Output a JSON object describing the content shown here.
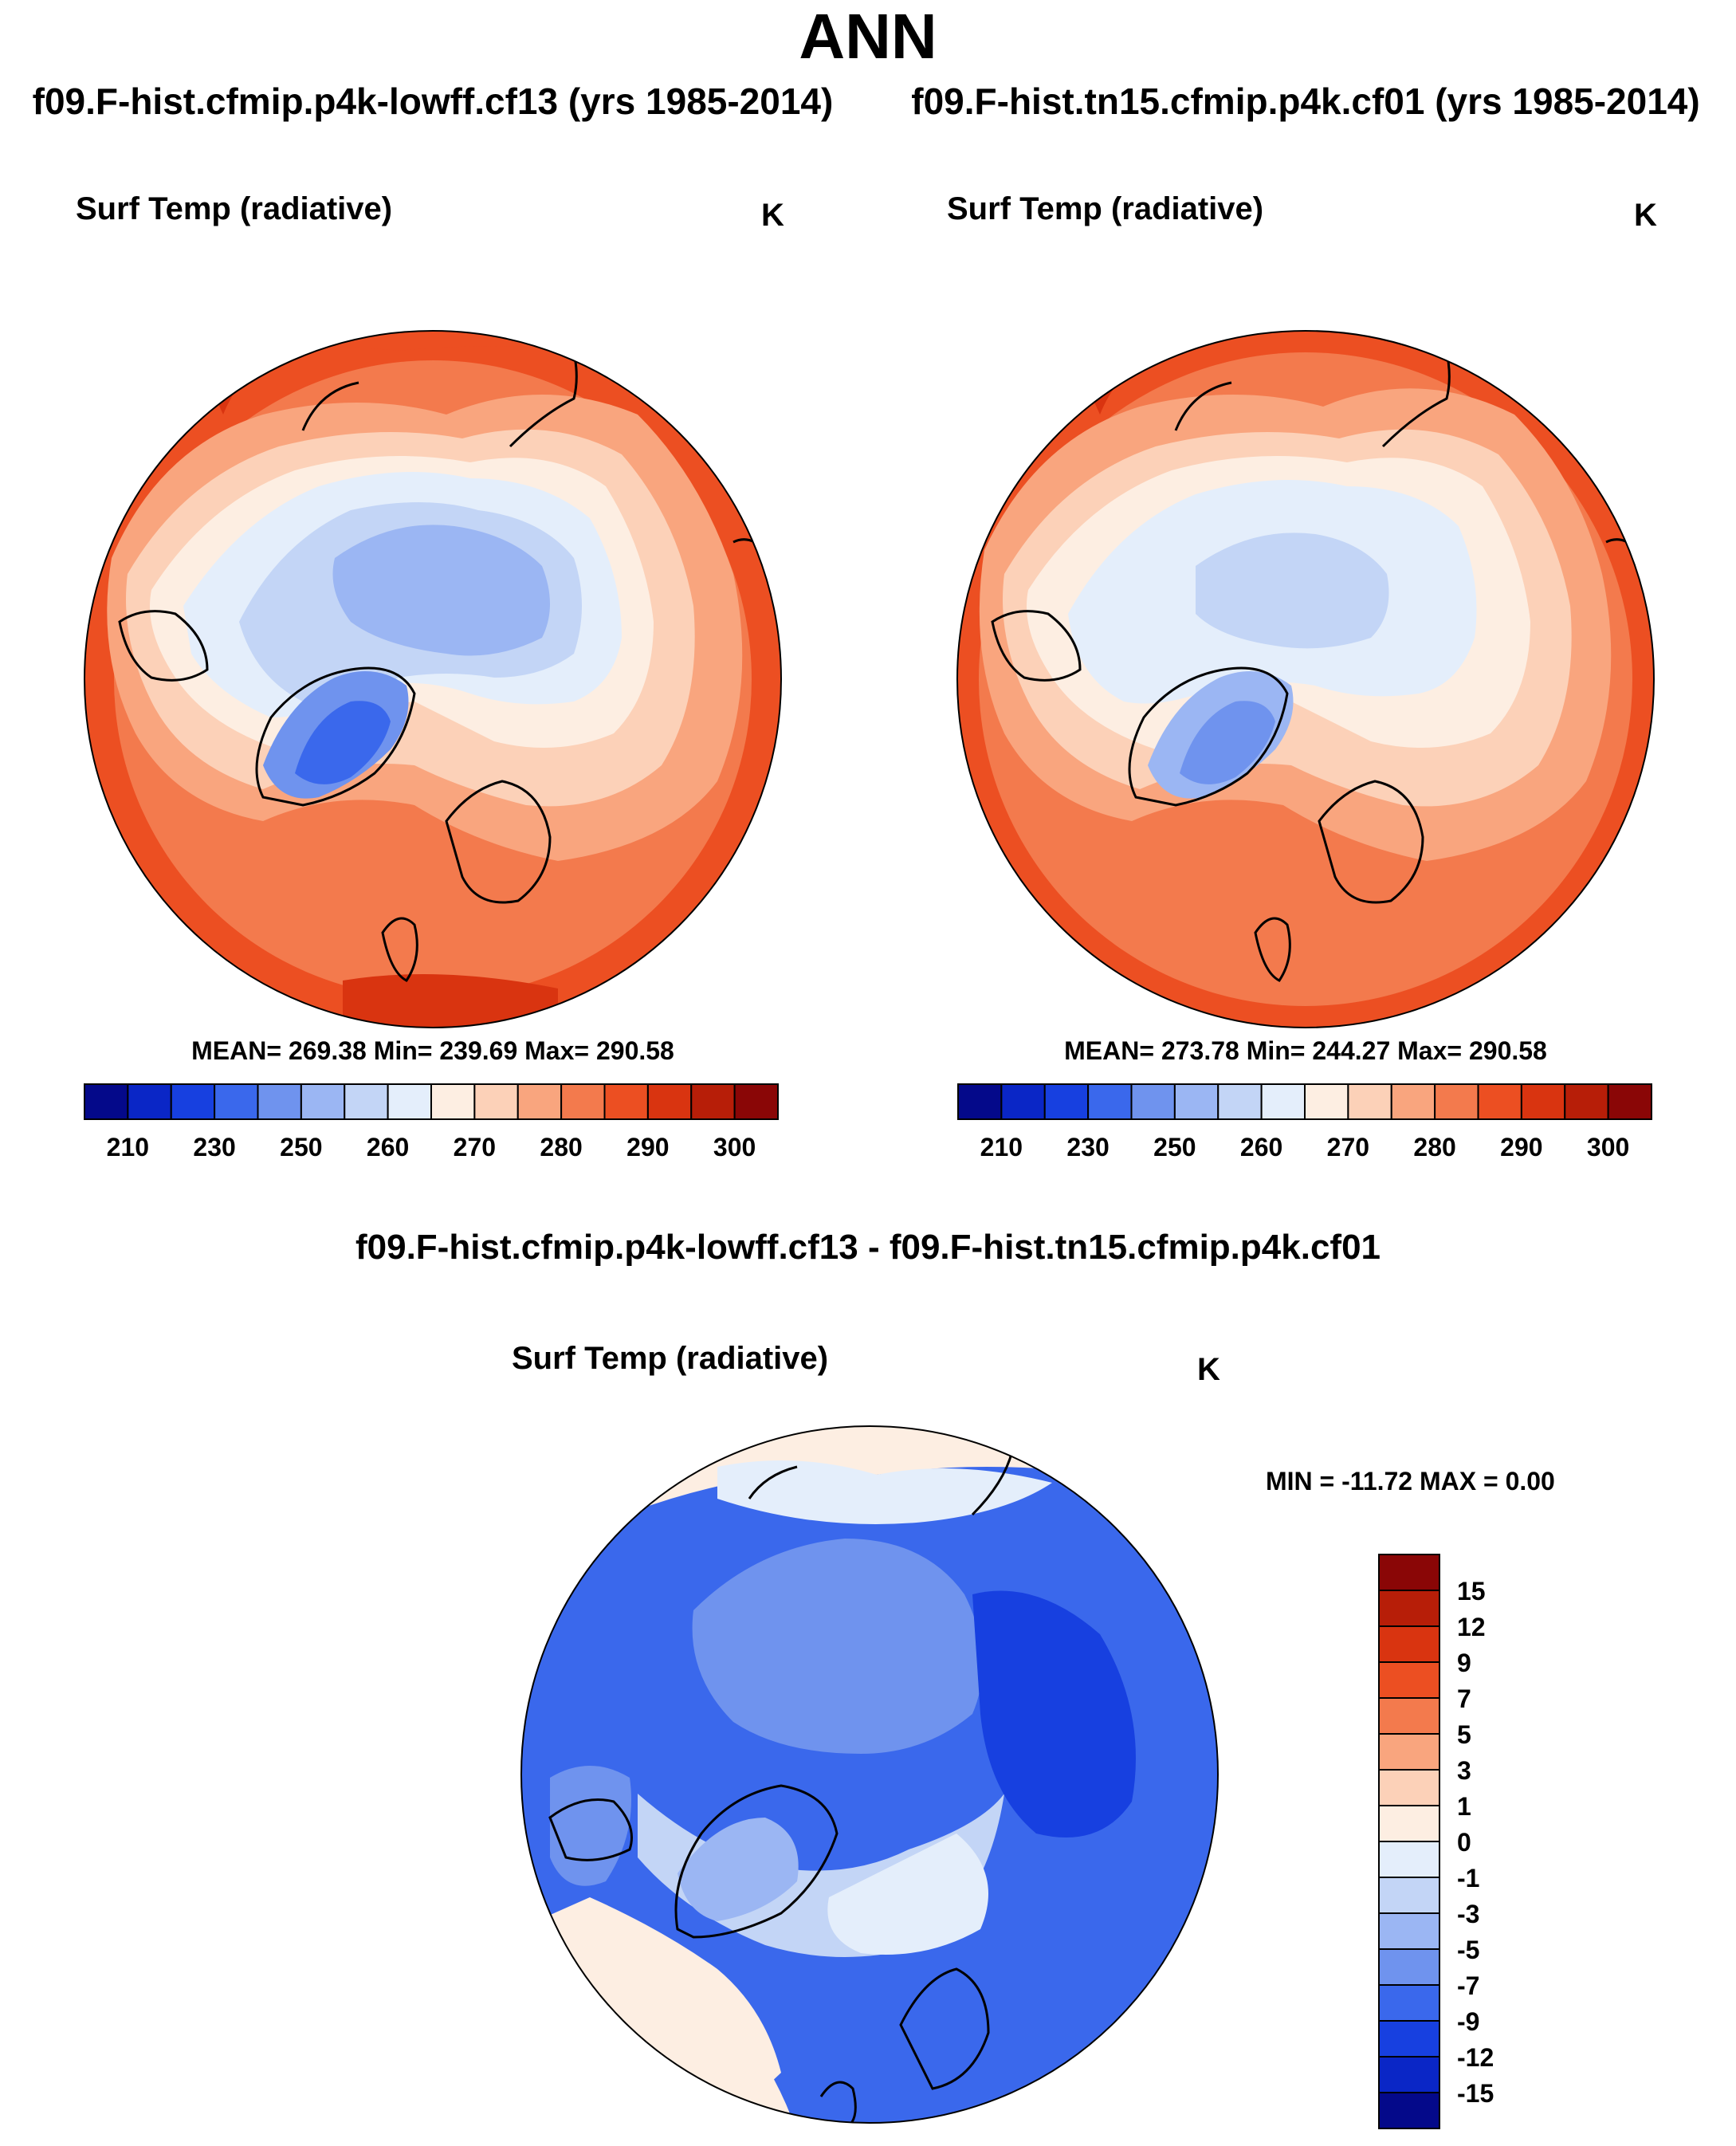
{
  "main_title": "ANN",
  "diff_title": "f09.F-hist.cfmip.p4k-lowff.cf13 - f09.F-hist.tn15.cfmip.p4k.cf01",
  "panels": {
    "a": {
      "run_title": "f09.F-hist.cfmip.p4k-lowff.cf13 (yrs 1985-2014)",
      "var_title": "Surf Temp (radiative)",
      "units": "K",
      "stats": "MEAN= 269.38  Min= 239.69  Max= 290.58"
    },
    "b": {
      "run_title": "f09.F-hist.tn15.cfmip.p4k.cf01 (yrs 1985-2014)",
      "var_title": "Surf Temp (radiative)",
      "units": "K",
      "stats": "MEAN= 273.78  Min= 244.27  Max= 290.58"
    },
    "diff": {
      "var_title": "Surf Temp (radiative)",
      "units": "K",
      "stats": "MIN = -11.72 MAX =    0.00"
    }
  },
  "chart_data": [
    {
      "type": "heatmap",
      "projection": "north-polar-stereographic",
      "title": "Surf Temp (radiative)",
      "units": "K",
      "run": "f09.F-hist.cfmip.p4k-lowff.cf13 (yrs 1985-2014)",
      "mean": 269.38,
      "min": 239.69,
      "max": 290.58,
      "colorbar_ticks": [
        210,
        230,
        250,
        260,
        270,
        280,
        290,
        300
      ],
      "colorbar_colors": [
        "#04098a",
        "#0a26c6",
        "#1740e0",
        "#3a68ec",
        "#6f93ee",
        "#9bb6f3",
        "#c3d5f6",
        "#e4eefb",
        "#fdeee2",
        "#fcd1b8",
        "#f9a57e",
        "#f37a4d",
        "#ec4f22",
        "#d93410",
        "#b71e08",
        "#8a0606"
      ]
    },
    {
      "type": "heatmap",
      "projection": "north-polar-stereographic",
      "title": "Surf Temp (radiative)",
      "units": "K",
      "run": "f09.F-hist.tn15.cfmip.p4k.cf01 (yrs 1985-2014)",
      "mean": 273.78,
      "min": 244.27,
      "max": 290.58,
      "colorbar_ticks": [
        210,
        230,
        250,
        260,
        270,
        280,
        290,
        300
      ],
      "colorbar_colors": [
        "#04098a",
        "#0a26c6",
        "#1740e0",
        "#3a68ec",
        "#6f93ee",
        "#9bb6f3",
        "#c3d5f6",
        "#e4eefb",
        "#fdeee2",
        "#fcd1b8",
        "#f9a57e",
        "#f37a4d",
        "#ec4f22",
        "#d93410",
        "#b71e08",
        "#8a0606"
      ]
    },
    {
      "type": "heatmap",
      "projection": "north-polar-stereographic",
      "title": "Surf Temp (radiative)",
      "units": "K",
      "run": "f09.F-hist.cfmip.p4k-lowff.cf13 - f09.F-hist.tn15.cfmip.p4k.cf01",
      "min": -11.72,
      "max": 0.0,
      "colorbar_ticks": [
        15,
        12,
        9,
        7,
        5,
        3,
        1,
        0,
        -1,
        -3,
        -5,
        -7,
        -9,
        -12,
        -15
      ],
      "colorbar_colors": [
        "#8a0606",
        "#b71e08",
        "#d93410",
        "#ec4f22",
        "#f37a4d",
        "#f9a57e",
        "#fcd1b8",
        "#fdeee2",
        "#e4eefb",
        "#c3d5f6",
        "#9bb6f3",
        "#6f93ee",
        "#3a68ec",
        "#1740e0",
        "#0a26c6",
        "#04098a"
      ]
    }
  ]
}
